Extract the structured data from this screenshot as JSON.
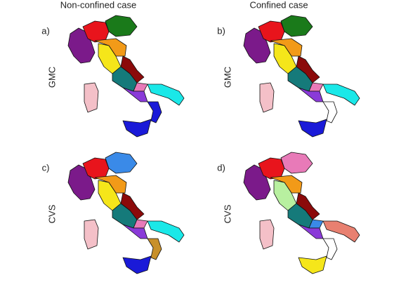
{
  "columns": [
    "Non-confined case",
    "Confined case"
  ],
  "panels": [
    {
      "label": "a)",
      "method": "GMC"
    },
    {
      "label": "b)",
      "method": "GMC"
    },
    {
      "label": "c)",
      "method": "CVS"
    },
    {
      "label": "d)",
      "method": "CVS"
    }
  ]
}
